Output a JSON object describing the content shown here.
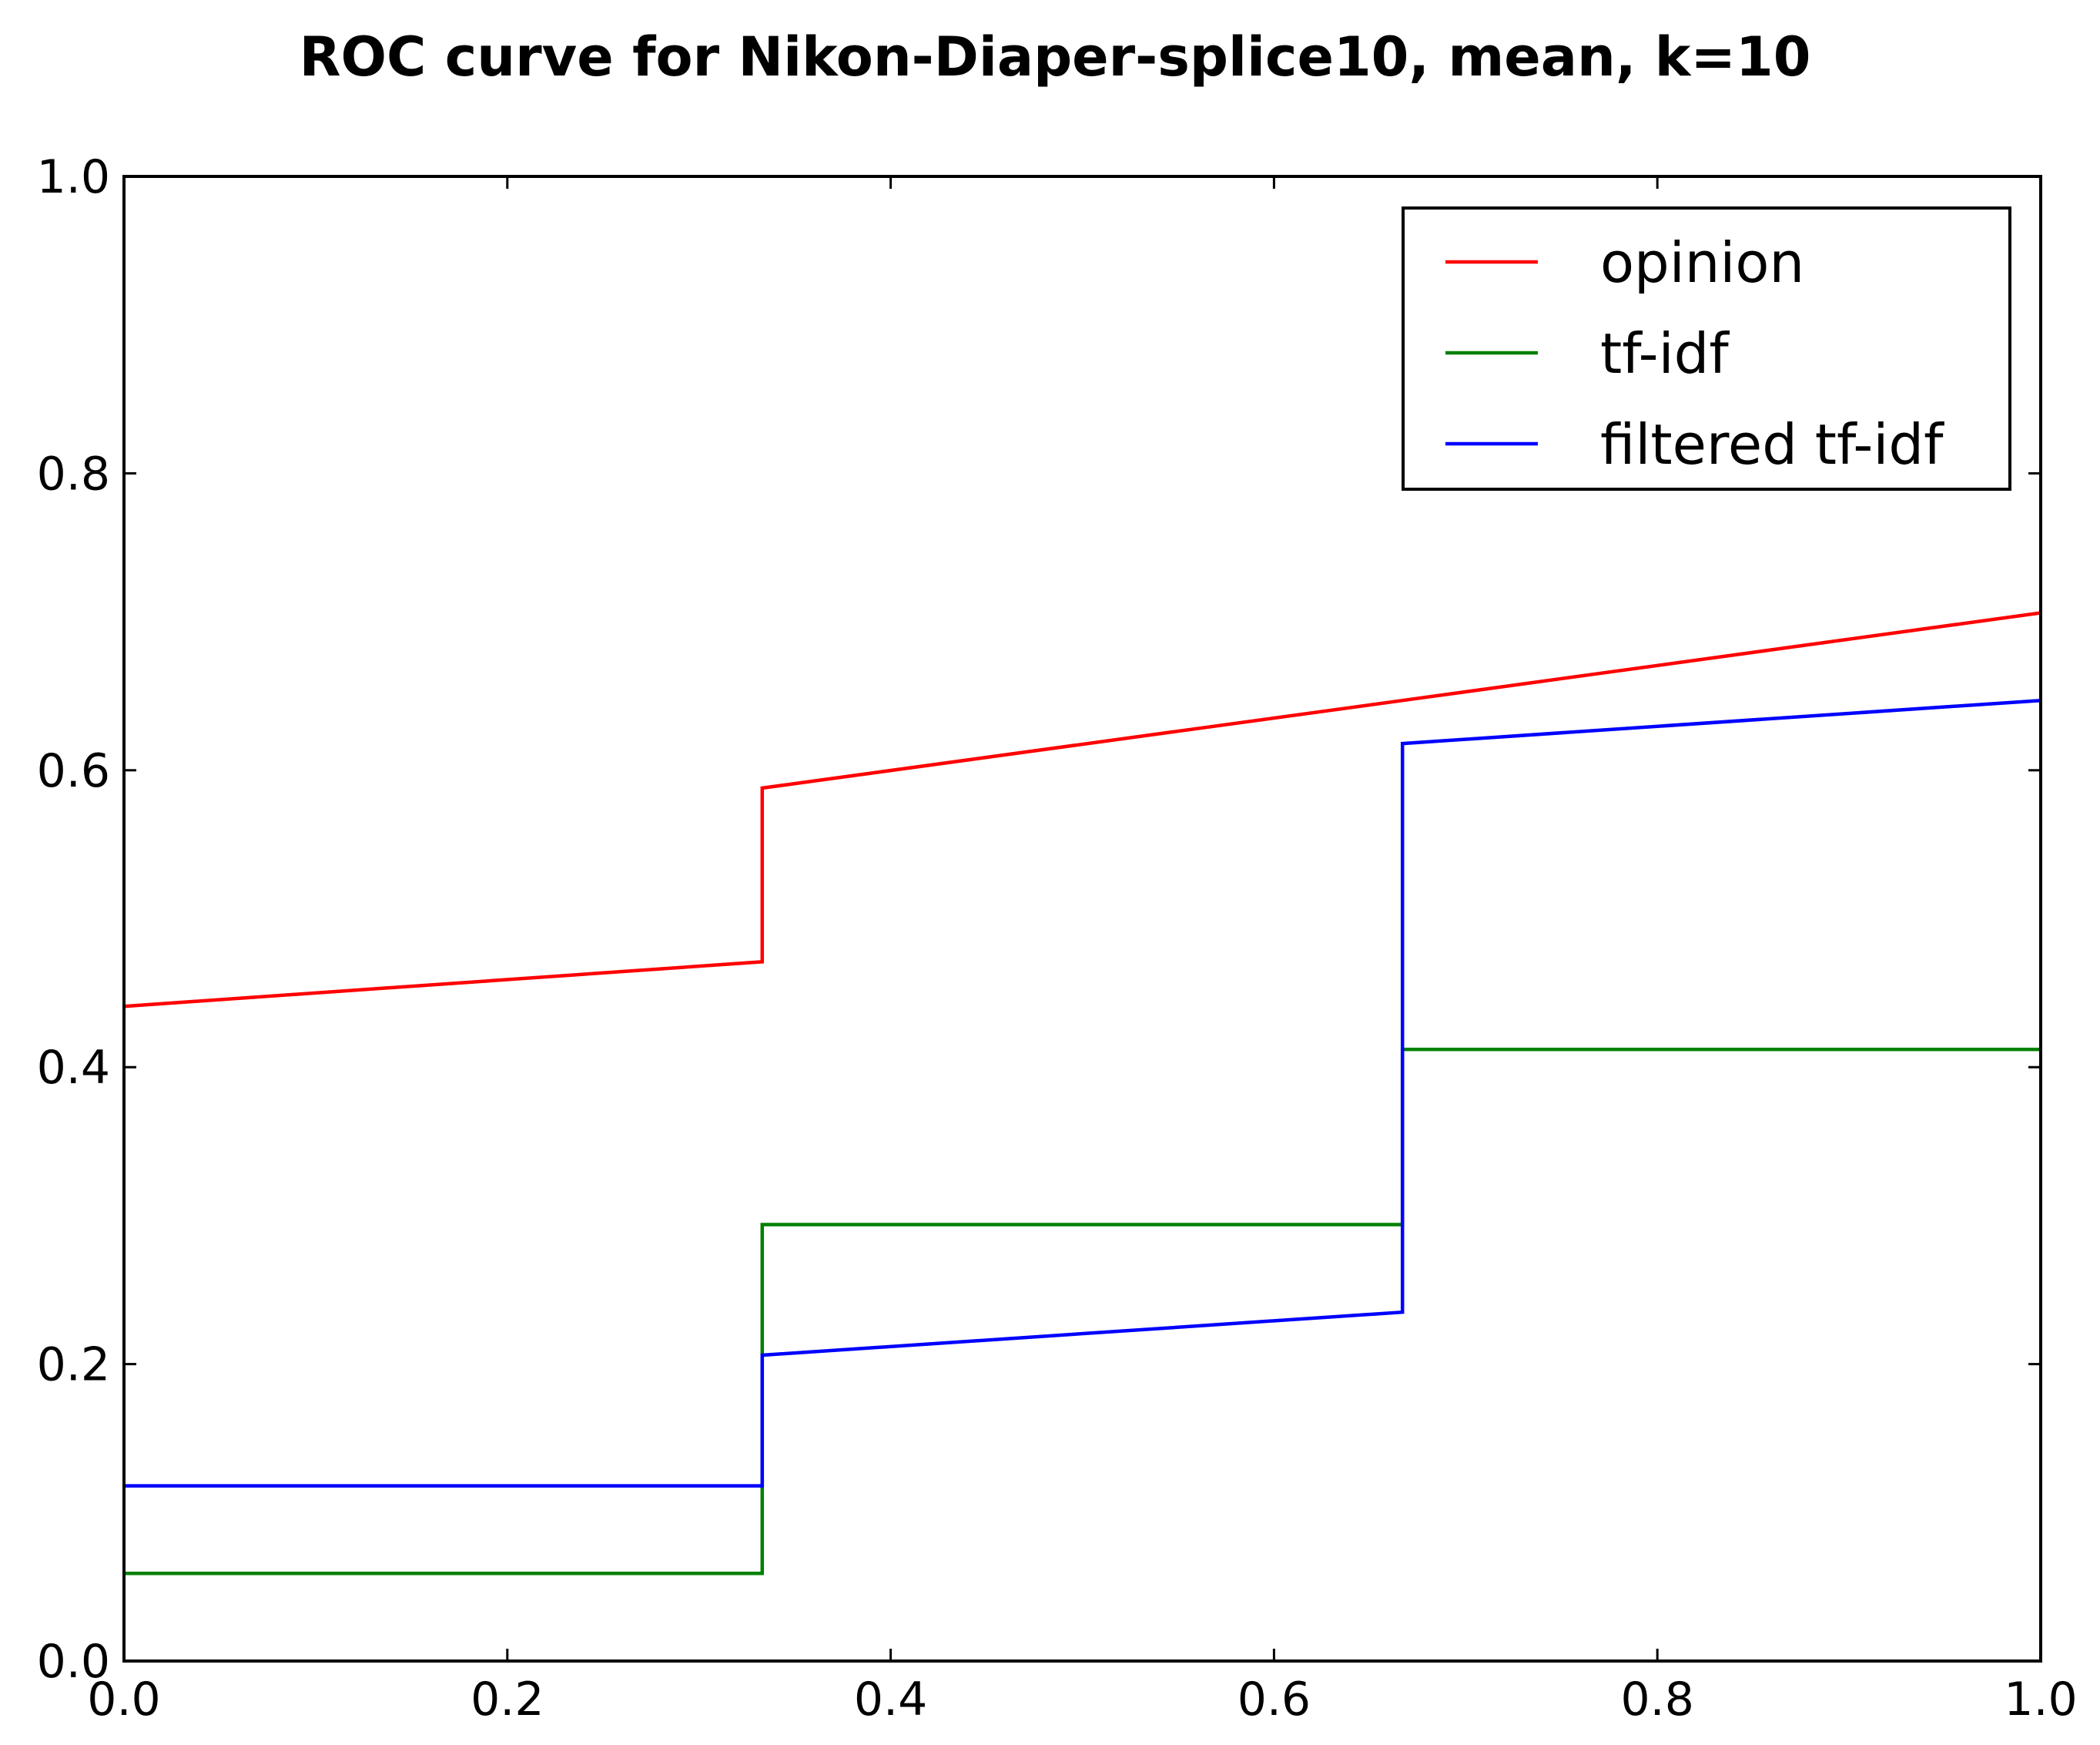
{
  "chart_data": {
    "type": "line",
    "title": "ROC curve for Nikon-Diaper-splice10, mean, k=10",
    "xlabel": "",
    "ylabel": "",
    "xlim": [
      0.0,
      1.0
    ],
    "ylim": [
      0.0,
      1.0
    ],
    "x_ticks": [
      "0.0",
      "0.2",
      "0.4",
      "0.6",
      "0.8",
      "1.0"
    ],
    "y_ticks": [
      "0.0",
      "0.2",
      "0.4",
      "0.6",
      "0.8",
      "1.0"
    ],
    "grid": false,
    "legend_position": "top-right",
    "series": [
      {
        "name": "opinion",
        "color": "#ff0000",
        "x": [
          0.0,
          0.333,
          0.333,
          0.667,
          1.0
        ],
        "y": [
          0.441,
          0.471,
          0.588,
          0.647,
          0.706
        ]
      },
      {
        "name": "tf-idf",
        "color": "#008000",
        "x": [
          0.0,
          0.333,
          0.333,
          0.667,
          0.667,
          1.0
        ],
        "y": [
          0.059,
          0.059,
          0.294,
          0.294,
          0.412,
          0.412
        ]
      },
      {
        "name": "filtered tf-idf",
        "color": "#0000ff",
        "x": [
          0.0,
          0.333,
          0.333,
          0.667,
          0.667,
          1.0
        ],
        "y": [
          0.118,
          0.118,
          0.206,
          0.235,
          0.618,
          0.647
        ]
      }
    ]
  }
}
